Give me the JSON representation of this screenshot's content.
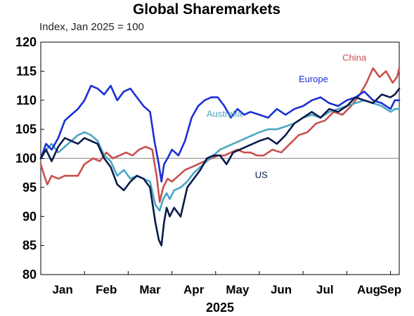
{
  "chart_data": {
    "type": "line",
    "title": "Global Sharemarkets",
    "subtitle": "Index, Jan 2025 = 100",
    "xlabel": "2025",
    "ylabel": "",
    "x_tick_labels": [
      "Jan",
      "Feb",
      "Mar",
      "Apr",
      "May",
      "Jun",
      "Jul",
      "Aug",
      "Sep"
    ],
    "ylim": [
      80,
      120
    ],
    "yticks": [
      80,
      85,
      90,
      95,
      100,
      105,
      110,
      115,
      120
    ],
    "xlim": [
      0,
      8.2
    ],
    "reference_line": 100,
    "grid": false,
    "x_units": "months since start of Jan 2025",
    "series": [
      {
        "name": "US",
        "color": "#0b1a4a",
        "x": [
          0.0,
          0.12,
          0.25,
          0.4,
          0.55,
          0.7,
          0.85,
          1.0,
          1.15,
          1.3,
          1.45,
          1.6,
          1.75,
          1.9,
          2.05,
          2.2,
          2.35,
          2.5,
          2.62,
          2.7,
          2.76,
          2.82,
          2.88,
          2.95,
          3.05,
          3.2,
          3.35,
          3.5,
          3.65,
          3.8,
          3.95,
          4.1,
          4.25,
          4.4,
          4.55,
          4.7,
          4.85,
          5.0,
          5.2,
          5.4,
          5.6,
          5.8,
          6.0,
          6.2,
          6.4,
          6.6,
          6.8,
          7.0,
          7.2,
          7.4,
          7.6,
          7.8,
          8.0,
          8.1,
          8.2
        ],
        "values": [
          100.0,
          101.5,
          99.5,
          102.0,
          103.5,
          103.0,
          102.5,
          103.5,
          103.0,
          102.5,
          100.0,
          98.5,
          95.5,
          94.5,
          96.0,
          97.0,
          96.5,
          95.0,
          89.0,
          86.0,
          85.0,
          89.0,
          91.5,
          90.0,
          91.5,
          90.0,
          95.0,
          96.5,
          98.0,
          100.0,
          100.5,
          100.5,
          99.0,
          101.0,
          101.5,
          102.0,
          102.5,
          103.0,
          103.5,
          102.5,
          104.0,
          106.0,
          107.0,
          108.0,
          107.0,
          108.5,
          108.0,
          109.0,
          110.5,
          110.0,
          109.5,
          111.0,
          110.5,
          111.0,
          112.0
        ]
      },
      {
        "name": "Europe",
        "color": "#1a2fd6",
        "x": [
          0.0,
          0.12,
          0.25,
          0.4,
          0.55,
          0.7,
          0.85,
          1.0,
          1.15,
          1.3,
          1.45,
          1.6,
          1.75,
          1.9,
          2.05,
          2.2,
          2.35,
          2.5,
          2.6,
          2.7,
          2.76,
          2.82,
          2.9,
          3.0,
          3.15,
          3.3,
          3.45,
          3.6,
          3.75,
          3.9,
          4.05,
          4.2,
          4.35,
          4.5,
          4.65,
          4.8,
          5.0,
          5.2,
          5.4,
          5.6,
          5.8,
          6.0,
          6.2,
          6.4,
          6.6,
          6.8,
          7.0,
          7.2,
          7.4,
          7.6,
          7.8,
          8.0,
          8.1,
          8.2
        ],
        "values": [
          100.0,
          102.5,
          101.5,
          103.5,
          106.5,
          107.5,
          108.5,
          110.0,
          112.5,
          112.0,
          111.0,
          112.5,
          110.0,
          111.5,
          112.0,
          110.5,
          109.0,
          108.0,
          103.0,
          99.0,
          96.0,
          99.0,
          100.0,
          101.5,
          100.5,
          103.0,
          107.0,
          109.0,
          110.0,
          110.5,
          110.5,
          109.0,
          107.0,
          108.5,
          107.5,
          108.0,
          107.5,
          107.0,
          108.5,
          107.5,
          108.5,
          109.0,
          110.0,
          110.5,
          109.5,
          109.0,
          110.0,
          110.5,
          111.5,
          110.0,
          109.5,
          108.5,
          110.0,
          110.0
        ]
      },
      {
        "name": "Australia",
        "color": "#4aa6c4",
        "x": [
          0.0,
          0.12,
          0.25,
          0.4,
          0.55,
          0.7,
          0.85,
          1.0,
          1.15,
          1.3,
          1.45,
          1.6,
          1.75,
          1.9,
          2.05,
          2.2,
          2.35,
          2.5,
          2.62,
          2.72,
          2.8,
          2.88,
          2.95,
          3.05,
          3.2,
          3.35,
          3.5,
          3.65,
          3.8,
          3.95,
          4.1,
          4.25,
          4.4,
          4.55,
          4.7,
          4.85,
          5.0,
          5.2,
          5.4,
          5.6,
          5.8,
          6.0,
          6.2,
          6.4,
          6.6,
          6.8,
          7.0,
          7.2,
          7.4,
          7.6,
          7.8,
          8.0,
          8.1,
          8.2
        ],
        "values": [
          100.0,
          101.5,
          102.5,
          101.0,
          102.0,
          103.0,
          104.0,
          104.5,
          104.0,
          103.0,
          100.5,
          99.5,
          97.0,
          98.0,
          96.5,
          97.0,
          96.5,
          96.0,
          92.0,
          91.0,
          93.0,
          94.0,
          93.0,
          94.5,
          95.0,
          96.0,
          97.5,
          98.5,
          99.5,
          100.5,
          101.5,
          102.0,
          102.5,
          103.0,
          103.5,
          104.0,
          104.5,
          105.0,
          105.0,
          105.5,
          106.0,
          107.0,
          107.5,
          107.0,
          108.0,
          108.5,
          109.0,
          109.5,
          110.0,
          109.5,
          109.0,
          108.0,
          108.5,
          108.5
        ]
      },
      {
        "name": "China",
        "color": "#c9504f",
        "x": [
          0.0,
          0.08,
          0.15,
          0.25,
          0.4,
          0.55,
          0.7,
          0.85,
          1.0,
          1.1,
          1.2,
          1.35,
          1.5,
          1.65,
          1.8,
          1.95,
          2.1,
          2.25,
          2.4,
          2.55,
          2.65,
          2.72,
          2.8,
          2.9,
          3.0,
          3.15,
          3.3,
          3.45,
          3.6,
          3.75,
          3.9,
          4.05,
          4.2,
          4.35,
          4.5,
          4.65,
          4.8,
          4.95,
          5.1,
          5.3,
          5.5,
          5.7,
          5.9,
          6.1,
          6.3,
          6.5,
          6.7,
          6.9,
          7.1,
          7.3,
          7.45,
          7.6,
          7.75,
          7.9,
          8.05,
          8.15,
          8.2
        ],
        "values": [
          99.0,
          97.0,
          95.5,
          97.0,
          96.5,
          97.0,
          97.0,
          97.0,
          99.0,
          99.5,
          100.0,
          99.5,
          101.0,
          100.0,
          100.5,
          101.0,
          100.5,
          101.5,
          102.0,
          101.5,
          97.0,
          92.5,
          95.0,
          96.5,
          96.0,
          97.0,
          98.0,
          98.5,
          99.0,
          99.5,
          100.0,
          100.5,
          100.5,
          101.0,
          101.5,
          101.0,
          101.0,
          100.5,
          100.5,
          101.5,
          101.0,
          102.5,
          104.0,
          104.5,
          106.0,
          106.5,
          108.0,
          107.5,
          109.0,
          111.0,
          113.0,
          115.5,
          114.0,
          115.0,
          113.0,
          114.0,
          115.5
        ]
      }
    ],
    "series_labels": [
      "US",
      "Europe",
      "Australia",
      "China"
    ]
  }
}
